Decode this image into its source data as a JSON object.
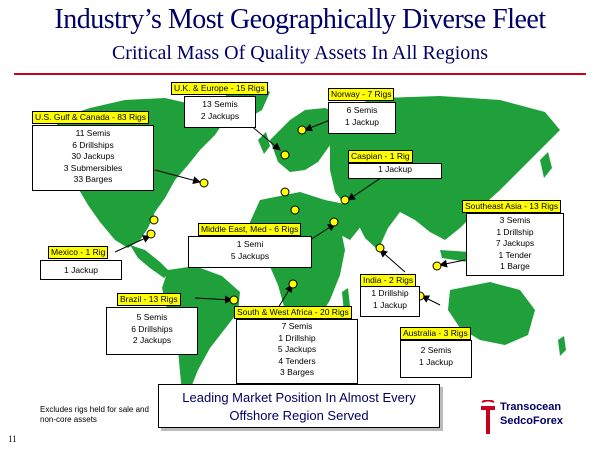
{
  "title": "Industry’s Most Geographically Diverse Fleet",
  "subtitle": "Critical Mass Of Quality Assets In All Regions",
  "regions": {
    "uk": {
      "header": "U.K. & Europe - 15 Rigs",
      "lines": [
        "13 Semis",
        "2 Jackups"
      ]
    },
    "norway": {
      "header": "Norway - 7 Rigs",
      "lines": [
        "6 Semis",
        "1 Jackup"
      ]
    },
    "usgulf": {
      "header": "U.S. Gulf & Canada - 83 Rigs",
      "lines": [
        "11 Semis",
        "6 Drillships",
        "30 Jackups",
        "3 Submersibles",
        "33 Barges"
      ]
    },
    "caspian": {
      "header": "Caspian - 1 Rig",
      "lines": [
        "1 Jackup"
      ]
    },
    "seasia": {
      "header": "Southeast Asia - 13 Rigs",
      "lines": [
        "3 Semis",
        "1 Drillship",
        "7 Jackups",
        "1 Tender",
        "1 Barge"
      ]
    },
    "mideast": {
      "header": "Middle East, Med - 6 Rigs",
      "lines": [
        "1 Semi",
        "5 Jackups"
      ]
    },
    "mexico": {
      "header": "Mexico - 1 Rig",
      "lines": [
        "1 Jackup"
      ]
    },
    "india": {
      "header": "India - 2 Rigs",
      "lines": [
        "1 Drillship",
        "1 Jackup"
      ]
    },
    "brazil": {
      "header": "Brazil - 13 Rigs",
      "lines": [
        "5 Semis",
        "6 Drillships",
        "2 Jackups"
      ]
    },
    "africa": {
      "header": "South & West Africa - 20 Rigs",
      "lines": [
        "7 Semis",
        "1 Drillship",
        "5 Jackups",
        "4 Tenders",
        "3 Barges"
      ]
    },
    "australia": {
      "header": "Australia - 3 Rigs",
      "lines": [
        "2 Semis",
        "1 Jackup"
      ]
    }
  },
  "footer": {
    "line1": "Leading Market Position In Almost Every",
    "line2": "Offshore Region Served"
  },
  "footnote": {
    "line1": "Excludes rigs held for sale and",
    "line2": "non-core assets"
  },
  "page_number": "11",
  "logo": {
    "line1": "Transocean",
    "line2": "SedcoForex"
  },
  "colors": {
    "land": "#1fa03a",
    "title": "#000066",
    "rule": "#c8001e",
    "header_bg": "#ffff00"
  }
}
